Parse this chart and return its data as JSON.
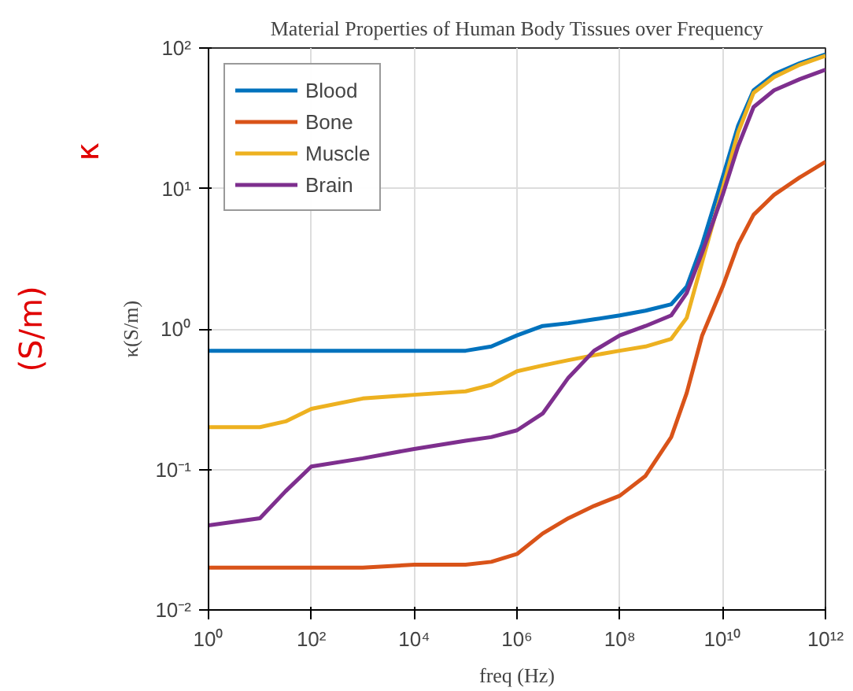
{
  "chart_data": {
    "type": "line",
    "title": "Material Properties of Human Body Tissues over Frequency",
    "xlabel": "freq (Hz)",
    "ylabel": "κ(S/m)",
    "annotations": [
      "κ",
      "(S/m)"
    ],
    "log": "xy",
    "grid": true,
    "legend": "top left",
    "line_style": "solid",
    "marker": "none",
    "xlim": [
      1,
      1000000000000
    ],
    "ylim": [
      0.01,
      100
    ],
    "xticks": [
      {
        "value": 1,
        "label": "10⁰"
      },
      {
        "value": 100,
        "label": "10²"
      },
      {
        "value": 10000,
        "label": "10⁴"
      },
      {
        "value": 1000000,
        "label": "10⁶"
      },
      {
        "value": 100000000,
        "label": "10⁸"
      },
      {
        "value": 10000000000,
        "label": "10¹⁰"
      },
      {
        "value": 1000000000000,
        "label": "10¹²"
      }
    ],
    "yticks": [
      {
        "value": 0.01,
        "label": "10⁻²"
      },
      {
        "value": 0.1,
        "label": "10⁻¹"
      },
      {
        "value": 1,
        "label": "10⁰"
      },
      {
        "value": 10,
        "label": "10¹"
      },
      {
        "value": 100,
        "label": "10²"
      }
    ],
    "x": [
      1,
      10,
      31.6,
      100,
      1000,
      10000,
      100000,
      316000,
      1000000,
      3160000,
      10000000,
      31600000,
      100000000,
      316000000,
      1000000000,
      2000000000,
      4000000000,
      10000000000,
      20000000000,
      40000000000,
      100000000000,
      316000000000,
      1000000000000
    ],
    "series": [
      {
        "name": "Blood",
        "color": "#0072bd",
        "values": [
          0.7,
          0.7,
          0.7,
          0.7,
          0.7,
          0.7,
          0.7,
          0.75,
          0.9,
          1.05,
          1.1,
          1.17,
          1.25,
          1.35,
          1.5,
          2,
          4,
          12,
          28,
          50,
          65,
          78,
          90
        ]
      },
      {
        "name": "Bone",
        "color": "#d95319",
        "values": [
          0.02,
          0.02,
          0.02,
          0.02,
          0.02,
          0.021,
          0.021,
          0.022,
          0.025,
          0.035,
          0.045,
          0.055,
          0.065,
          0.09,
          0.17,
          0.35,
          0.9,
          2,
          4,
          6.5,
          9,
          12,
          15.5
        ]
      },
      {
        "name": "Muscle",
        "color": "#edb120",
        "values": [
          0.2,
          0.2,
          0.22,
          0.27,
          0.32,
          0.34,
          0.36,
          0.4,
          0.5,
          0.55,
          0.6,
          0.65,
          0.7,
          0.75,
          0.85,
          1.2,
          3,
          10,
          25,
          48,
          62,
          76,
          88
        ]
      },
      {
        "name": "Brain",
        "color": "#7e2f8e",
        "values": [
          0.04,
          0.045,
          0.07,
          0.105,
          0.12,
          0.14,
          0.16,
          0.17,
          0.19,
          0.25,
          0.45,
          0.7,
          0.9,
          1.05,
          1.25,
          1.8,
          3.5,
          9,
          20,
          38,
          50,
          60,
          70
        ]
      }
    ]
  }
}
